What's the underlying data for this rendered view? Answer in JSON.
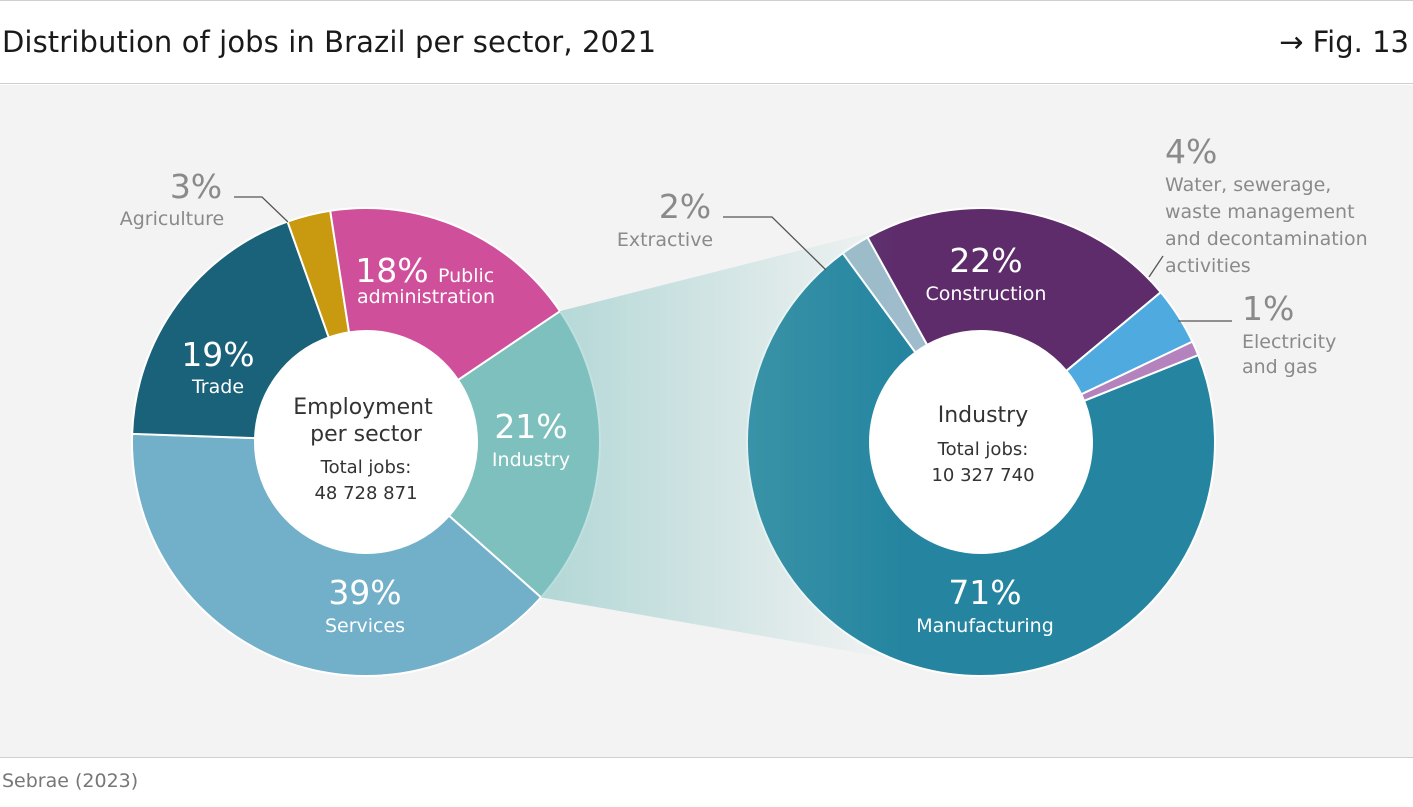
{
  "header": {
    "title": "Distribution of jobs in Brazil per sector, 2021",
    "fig_ref": "→ Fig. 13"
  },
  "footer": {
    "source": "Sebrae (2023)"
  },
  "colors": {
    "services": "#72afc9",
    "trade": "#1a6279",
    "agriculture": "#c9990f",
    "public_administration": "#cf4f9a",
    "industry": "#7dc0be",
    "manufacturing": "#2585a0",
    "extractive": "#9ebccb",
    "construction": "#5e2b6b",
    "water": "#4faadf",
    "electricity": "#b483bd",
    "muted_text": "#8a8a8a"
  },
  "chart_data": [
    {
      "type": "donut",
      "center_title": "Employment per sector",
      "center_title_lines": [
        "Employment",
        "per sector"
      ],
      "total_label": "Total jobs:",
      "total_value": "48 728 871",
      "slices": [
        {
          "key": "industry",
          "name": "Industry",
          "pct_label": "21%",
          "value": 21
        },
        {
          "key": "services",
          "name": "Services",
          "pct_label": "39%",
          "value": 39
        },
        {
          "key": "trade",
          "name": "Trade",
          "pct_label": "19%",
          "value": 19
        },
        {
          "key": "agriculture",
          "name": "Agriculture",
          "pct_label": "3%",
          "value": 3
        },
        {
          "key": "public_administration",
          "name": "Public administration",
          "name_lines": [
            "Public",
            "administration"
          ],
          "pct_label": "18%",
          "value": 18
        }
      ]
    },
    {
      "type": "donut",
      "center_title": "Industry",
      "total_label": "Total jobs:",
      "total_value": "10 327 740",
      "slices": [
        {
          "key": "manufacturing",
          "name": "Manufacturing",
          "pct_label": "71%",
          "value": 71
        },
        {
          "key": "extractive",
          "name": "Extractive",
          "pct_label": "2%",
          "value": 2
        },
        {
          "key": "construction",
          "name": "Construction",
          "pct_label": "22%",
          "value": 22
        },
        {
          "key": "water",
          "name": "Water, sewerage, waste management and decontamination activities",
          "name_lines": [
            "Water, sewerage,",
            "waste management",
            "and decontamination",
            "activities"
          ],
          "pct_label": "4%",
          "value": 4
        },
        {
          "key": "electricity",
          "name": "Electricity and gas",
          "name_lines": [
            "Electricity",
            "and gas"
          ],
          "pct_label": "1%",
          "value": 1
        }
      ]
    }
  ]
}
